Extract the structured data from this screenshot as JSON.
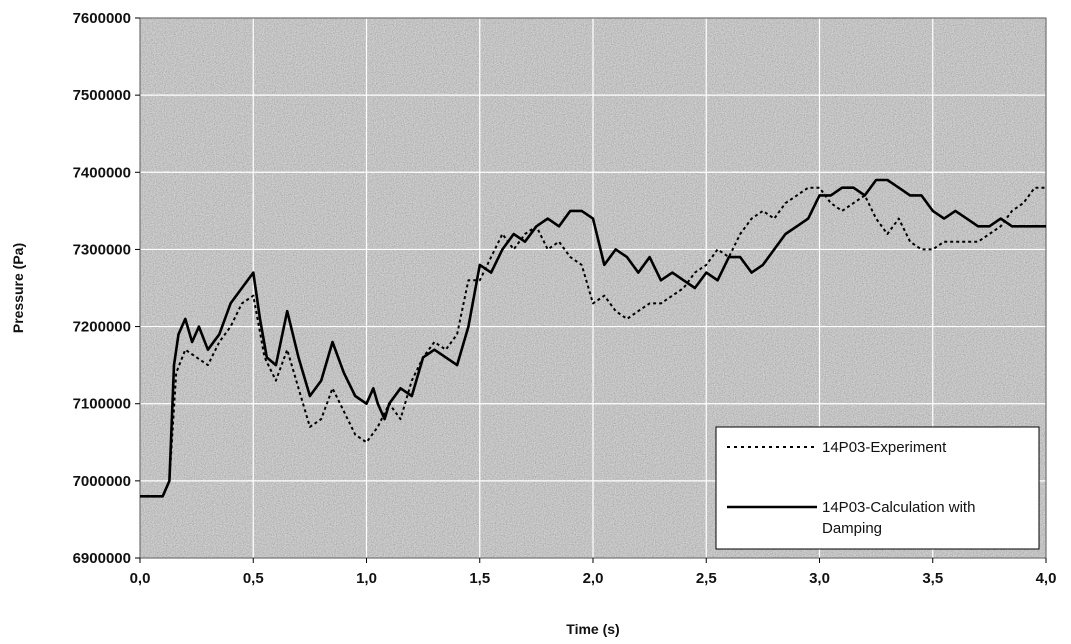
{
  "chart_data": {
    "type": "line",
    "title": "",
    "xlabel": "Time (s)",
    "ylabel": "Pressure (Pa)",
    "xlim": [
      0,
      4
    ],
    "ylim": [
      6900000,
      7600000
    ],
    "x_ticks": [
      "0,0",
      "0,5",
      "1,0",
      "1,5",
      "2,0",
      "2,5",
      "3,0",
      "3,5",
      "4,0"
    ],
    "y_ticks": [
      "6900000",
      "7000000",
      "7100000",
      "7200000",
      "7300000",
      "7400000",
      "7500000",
      "7600000"
    ],
    "grid": true,
    "legend_position": "bottom-right",
    "series": [
      {
        "name": "14P03-Experiment",
        "style": "dotted",
        "color": "#000000",
        "x": [
          0,
          0.1,
          0.13,
          0.16,
          0.2,
          0.25,
          0.3,
          0.35,
          0.4,
          0.45,
          0.5,
          0.55,
          0.6,
          0.65,
          0.7,
          0.75,
          0.8,
          0.85,
          0.9,
          0.95,
          1.0,
          1.05,
          1.1,
          1.15,
          1.2,
          1.25,
          1.3,
          1.35,
          1.4,
          1.45,
          1.5,
          1.55,
          1.6,
          1.65,
          1.7,
          1.75,
          1.8,
          1.85,
          1.9,
          1.95,
          2.0,
          2.05,
          2.1,
          2.15,
          2.2,
          2.25,
          2.3,
          2.35,
          2.4,
          2.45,
          2.5,
          2.55,
          2.6,
          2.65,
          2.7,
          2.75,
          2.8,
          2.85,
          2.9,
          2.95,
          3.0,
          3.05,
          3.1,
          3.15,
          3.2,
          3.25,
          3.3,
          3.35,
          3.4,
          3.45,
          3.5,
          3.55,
          3.6,
          3.65,
          3.7,
          3.75,
          3.8,
          3.85,
          3.9,
          3.95,
          4.0
        ],
        "y": [
          6980000,
          6980000,
          7000000,
          7140000,
          7170000,
          7160000,
          7150000,
          7180000,
          7200000,
          7230000,
          7240000,
          7160000,
          7130000,
          7170000,
          7120000,
          7070000,
          7080000,
          7120000,
          7090000,
          7060000,
          7050000,
          7070000,
          7100000,
          7080000,
          7130000,
          7160000,
          7180000,
          7170000,
          7190000,
          7260000,
          7260000,
          7290000,
          7320000,
          7300000,
          7320000,
          7330000,
          7300000,
          7310000,
          7290000,
          7280000,
          7230000,
          7240000,
          7220000,
          7210000,
          7220000,
          7230000,
          7230000,
          7240000,
          7250000,
          7270000,
          7280000,
          7300000,
          7290000,
          7320000,
          7340000,
          7350000,
          7340000,
          7360000,
          7370000,
          7380000,
          7380000,
          7360000,
          7350000,
          7360000,
          7370000,
          7340000,
          7320000,
          7340000,
          7310000,
          7300000,
          7300000,
          7310000,
          7310000,
          7310000,
          7310000,
          7320000,
          7330000,
          7350000,
          7360000,
          7380000,
          7380000
        ]
      },
      {
        "name": "14P03-Calculation with Damping",
        "style": "solid",
        "color": "#000000",
        "x": [
          0,
          0.1,
          0.13,
          0.15,
          0.17,
          0.2,
          0.23,
          0.26,
          0.3,
          0.35,
          0.4,
          0.45,
          0.5,
          0.53,
          0.56,
          0.6,
          0.65,
          0.7,
          0.75,
          0.8,
          0.85,
          0.9,
          0.95,
          1.0,
          1.03,
          1.05,
          1.08,
          1.1,
          1.15,
          1.2,
          1.25,
          1.3,
          1.35,
          1.4,
          1.45,
          1.5,
          1.55,
          1.6,
          1.65,
          1.7,
          1.75,
          1.8,
          1.85,
          1.9,
          1.95,
          2.0,
          2.05,
          2.1,
          2.15,
          2.2,
          2.25,
          2.3,
          2.35,
          2.4,
          2.45,
          2.5,
          2.55,
          2.6,
          2.65,
          2.7,
          2.75,
          2.8,
          2.85,
          2.9,
          2.95,
          3.0,
          3.05,
          3.1,
          3.15,
          3.2,
          3.25,
          3.3,
          3.35,
          3.4,
          3.45,
          3.5,
          3.55,
          3.6,
          3.65,
          3.7,
          3.75,
          3.8,
          3.85,
          3.9,
          3.95,
          4.0
        ],
        "y": [
          6980000,
          6980000,
          7000000,
          7150000,
          7190000,
          7210000,
          7180000,
          7200000,
          7170000,
          7190000,
          7230000,
          7250000,
          7270000,
          7210000,
          7160000,
          7150000,
          7220000,
          7160000,
          7110000,
          7130000,
          7180000,
          7140000,
          7110000,
          7100000,
          7120000,
          7100000,
          7080000,
          7100000,
          7120000,
          7110000,
          7160000,
          7170000,
          7160000,
          7150000,
          7200000,
          7280000,
          7270000,
          7300000,
          7320000,
          7310000,
          7330000,
          7340000,
          7330000,
          7350000,
          7350000,
          7340000,
          7280000,
          7300000,
          7290000,
          7270000,
          7290000,
          7260000,
          7270000,
          7260000,
          7250000,
          7270000,
          7260000,
          7290000,
          7290000,
          7270000,
          7280000,
          7300000,
          7320000,
          7330000,
          7340000,
          7370000,
          7370000,
          7380000,
          7380000,
          7370000,
          7390000,
          7390000,
          7380000,
          7370000,
          7370000,
          7350000,
          7340000,
          7350000,
          7340000,
          7330000,
          7330000,
          7340000,
          7330000,
          7330000,
          7330000,
          7330000
        ]
      }
    ]
  }
}
